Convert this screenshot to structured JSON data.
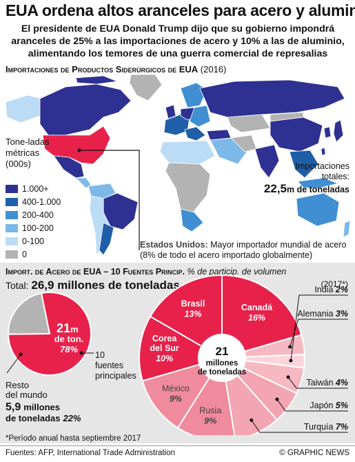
{
  "header": {
    "title": "EUA ordena altos aranceles para acero y aluminio",
    "subtitle": "El presidente de EUA Donald Trump dijo que su gobierno impondrá aranceles de 25% a las importaciones de acero y 10% a las de aluminio, alimentando los temores de una guerra comercial de represalias"
  },
  "map": {
    "heading": "Importaciones de Productos Siderúrgicos de EUA",
    "heading_year": "(2016)",
    "legend_title": "Tone-ladas métricas (000s)",
    "legend": [
      {
        "label": "1.000+",
        "color": "#2e3192"
      },
      {
        "label": "400-1.000",
        "color": "#1f5fa8"
      },
      {
        "label": "200-400",
        "color": "#3f8fd2"
      },
      {
        "label": "100-200",
        "color": "#7cb9e8"
      },
      {
        "label": "0-100",
        "color": "#bcdcf5"
      },
      {
        "label": "0",
        "color": "#b3b3b3"
      }
    ],
    "imports_label": "Importaciones totales:",
    "imports_value": "22,5",
    "imports_unit": "m de toneladas",
    "usa_note_bold": "Estados Unidos:",
    "usa_note": "Mayor importador mundial de acero (8% de todo el acero importado globalmente)",
    "colors": {
      "usa": "#e8214a",
      "ocean": "#ffffff"
    }
  },
  "chart_section": {
    "heading_bold": "Import. de Acero de EUA – 10 Fuentes Princip.",
    "heading_italic": "% de particip. de volumen",
    "period_mark": "(2017*)",
    "total_label": "Total:",
    "total_value": "26,9 millones de toneladas",
    "footnote": "*Período anual hasta septiembre 2017"
  },
  "chart_data": [
    {
      "type": "pie",
      "slices": [
        {
          "name": "10 fuentes principales",
          "value": 78,
          "amount": "21",
          "amount_unit": "m de ton.",
          "color": "#e8214a"
        },
        {
          "name": "Resto del mundo",
          "value": 22,
          "amount": "5,9",
          "amount_unit": "millones de toneladas",
          "color": "#b3b3b3"
        }
      ],
      "labels": {
        "main_amount": "21",
        "main_unit_a": "m",
        "main_unit_b": "de ton.",
        "main_pct": "78%",
        "top10_label": "10 fuentes principales",
        "rest_label": "Resto del mundo",
        "rest_amount": "5,9",
        "rest_unit": "millones de toneladas",
        "rest_pct": "22%"
      }
    },
    {
      "type": "pie",
      "center_value": "21",
      "center_label": "millones de toneladas",
      "slices": [
        {
          "name": "Canadá",
          "value": 16,
          "color": "#e8214a"
        },
        {
          "name": "Alemania",
          "value": 3,
          "color": "#f6b8c2"
        },
        {
          "name": "India",
          "value": 2,
          "color": "#fbd5db"
        },
        {
          "name": "Taiwán",
          "value": 4,
          "color": "#f6b8c2"
        },
        {
          "name": "Japón",
          "value": 5,
          "color": "#f3a5b3"
        },
        {
          "name": "Turquía",
          "value": 7,
          "color": "#f3a5b3"
        },
        {
          "name": "Rusia",
          "value": 9,
          "color": "#f08a9d"
        },
        {
          "name": "México",
          "value": 9,
          "color": "#f08a9d"
        },
        {
          "name": "Corea del Sur",
          "value": 10,
          "color": "#e8214a"
        },
        {
          "name": "Brasil",
          "value": 13,
          "color": "#e8214a"
        }
      ],
      "pct_labels": {
        "Canadá": "16%",
        "Alemania": "3%",
        "India": "2%",
        "Taiwán": "4%",
        "Japón": "5%",
        "Turquía": "7%",
        "Rusia": "9%",
        "México": "9%",
        "Corea del Sur": "10%",
        "Brasil": "13%"
      }
    }
  ],
  "footer": {
    "sources": "Fuentes: AFP, International Trade Administration",
    "credit": "© GRAPHIC NEWS"
  }
}
